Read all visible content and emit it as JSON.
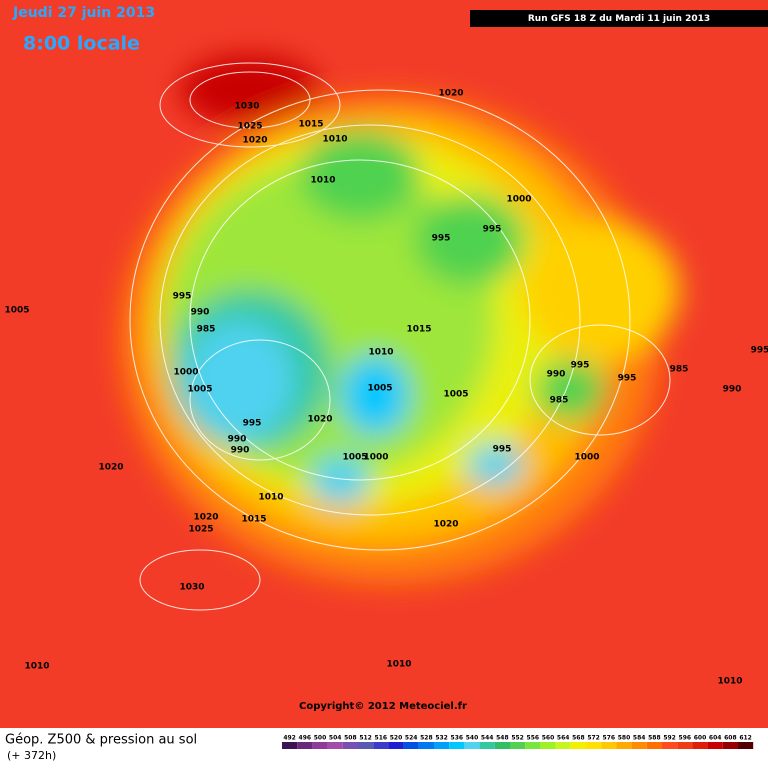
{
  "header": {
    "date": "Jeudi 27 juin 2013",
    "time": "8:00 locale",
    "run": "Run GFS 18 Z du Mardi 11 juin 2013"
  },
  "isobar_labels": [
    1030,
    1025,
    1020,
    1015,
    1010,
    1020,
    1010,
    1000,
    995,
    995,
    995,
    990,
    985,
    1005,
    1015,
    1010,
    1005,
    1000,
    1005,
    995,
    990,
    990,
    1020,
    1005,
    995,
    1005,
    1000,
    990,
    995,
    995,
    985,
    1000,
    985,
    990,
    995,
    1020,
    1010,
    1015,
    1020,
    1025,
    1030,
    1020,
    1010,
    1010,
    1010
  ],
  "copyright": "Copyright© 2012 Meteociel.fr",
  "legend": {
    "title": "Géop. Z500 & pression au sol",
    "lead": "(+ 372h)",
    "values": [
      492,
      496,
      500,
      504,
      508,
      512,
      516,
      520,
      524,
      528,
      532,
      536,
      540,
      544,
      548,
      552,
      556,
      560,
      564,
      568,
      572,
      576,
      580,
      584,
      588,
      592,
      596,
      600,
      604,
      608,
      612
    ],
    "colors": [
      "#3c1450",
      "#6a2a7a",
      "#8c3c96",
      "#a04ca8",
      "#7850b4",
      "#5a5ab4",
      "#3c3cc8",
      "#1e1ed2",
      "#0050e6",
      "#0078f0",
      "#00a0fa",
      "#00c8ff",
      "#50d2f0",
      "#32c8a0",
      "#32be64",
      "#50d250",
      "#78e63c",
      "#a0f028",
      "#c8f51e",
      "#f0f000",
      "#ffe100",
      "#ffc800",
      "#ffaa00",
      "#ff8c00",
      "#ff6e00",
      "#ff4b1e",
      "#f03c14",
      "#dc1e0a",
      "#c80000",
      "#960000",
      "#500000"
    ]
  }
}
